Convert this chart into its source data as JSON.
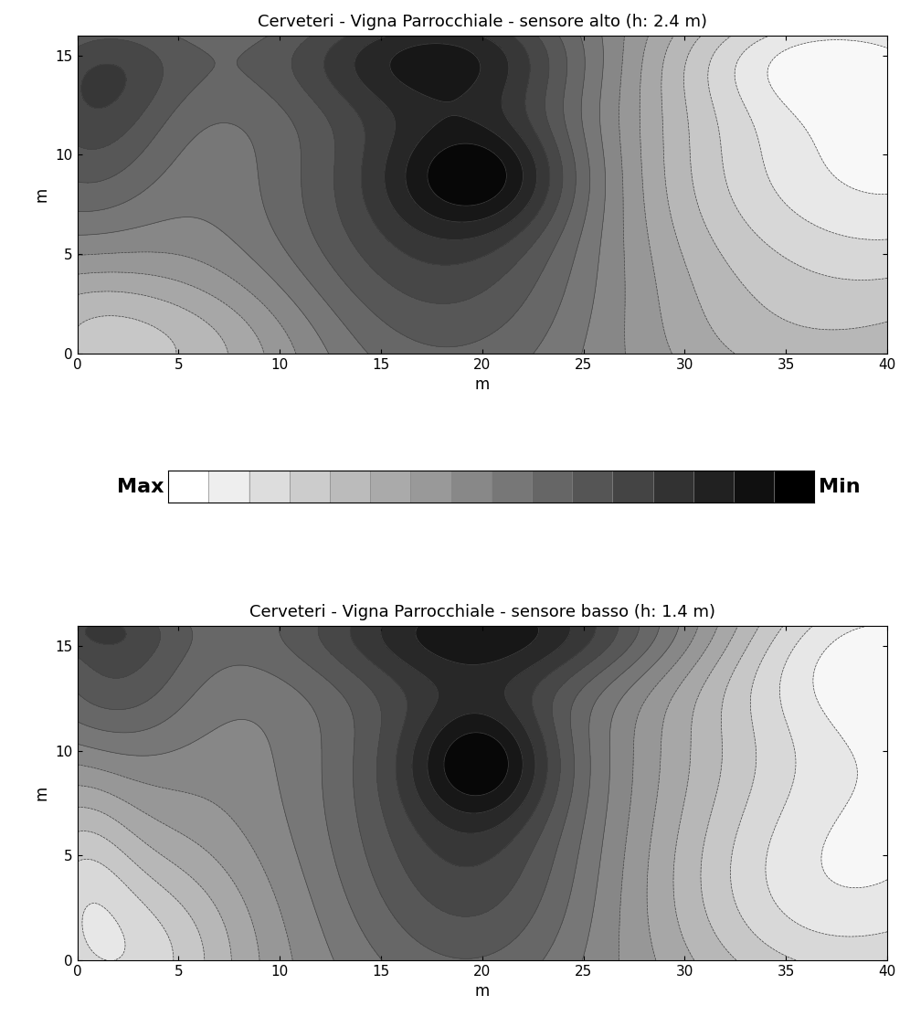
{
  "title1": "Cerveteri - Vigna Parrocchiale - sensore alto (h: 2.4 m)",
  "title2": "Cerveteri - Vigna Parrocchiale - sensore basso (h: 1.4 m)",
  "xlabel": "m",
  "ylabel": "m",
  "xmin": 0,
  "xmax": 40,
  "ymin": 0,
  "ymax": 16,
  "xticks": [
    0,
    5,
    10,
    15,
    20,
    25,
    30,
    35,
    40
  ],
  "yticks": [
    0,
    5,
    10,
    15
  ],
  "n_contours": 16,
  "colormap": "gray_r",
  "legend_label_max": "Max",
  "legend_label_min": "Min",
  "figsize": [
    9.96,
    11.12
  ],
  "dpi": 100,
  "background_color": "#ffffff"
}
